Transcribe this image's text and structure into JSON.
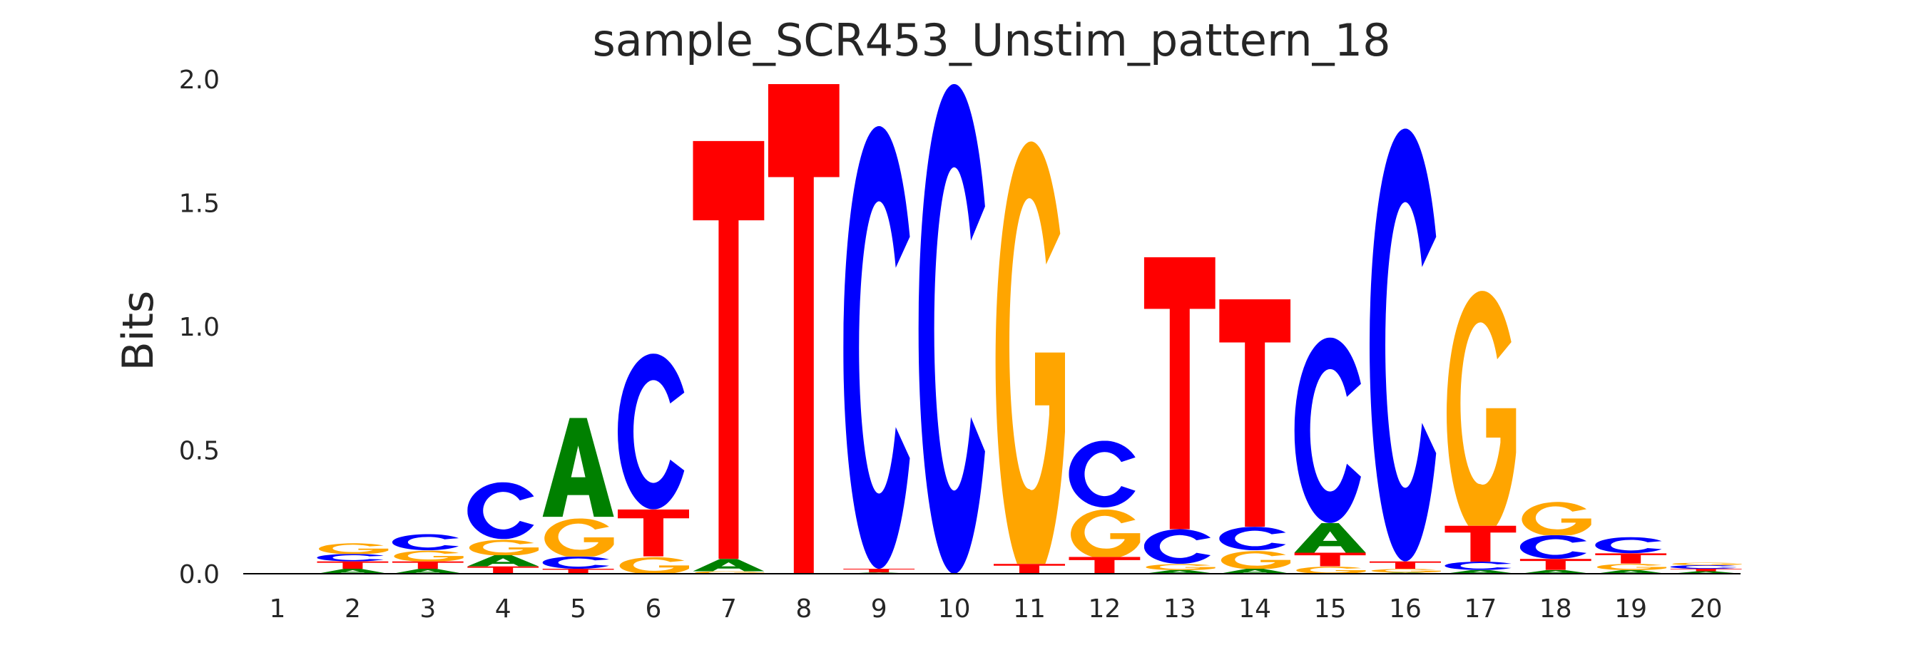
{
  "chart_data": {
    "type": "sequence-logo",
    "title": "sample_SCR453_Unstim_pattern_18",
    "xlabel": "",
    "ylabel": "Bits",
    "ylim": [
      0,
      2.0
    ],
    "yticks": [
      "0.0",
      "0.5",
      "1.0",
      "1.5",
      "2.0"
    ],
    "ytick_values": [
      0,
      0.5,
      1.0,
      1.5,
      2.0
    ],
    "xticks": [
      "1",
      "2",
      "3",
      "4",
      "5",
      "6",
      "7",
      "8",
      "9",
      "10",
      "11",
      "12",
      "13",
      "14",
      "15",
      "16",
      "17",
      "18",
      "19",
      "20"
    ],
    "grid": false,
    "colors": {
      "A": "#008000",
      "C": "#0000ff",
      "G": "#ffa500",
      "T": "#ff0000"
    },
    "positions": [
      {
        "pos": 1,
        "stack": []
      },
      {
        "pos": 2,
        "stack": [
          {
            "base": "A",
            "bits": 0.02
          },
          {
            "base": "T",
            "bits": 0.03
          },
          {
            "base": "C",
            "bits": 0.03
          },
          {
            "base": "G",
            "bits": 0.045
          }
        ]
      },
      {
        "pos": 3,
        "stack": [
          {
            "base": "A",
            "bits": 0.02
          },
          {
            "base": "T",
            "bits": 0.03
          },
          {
            "base": "G",
            "bits": 0.045
          },
          {
            "base": "C",
            "bits": 0.065
          }
        ]
      },
      {
        "pos": 4,
        "stack": [
          {
            "base": "T",
            "bits": 0.03
          },
          {
            "base": "A",
            "bits": 0.045
          },
          {
            "base": "G",
            "bits": 0.065
          },
          {
            "base": "C",
            "bits": 0.23
          }
        ]
      },
      {
        "pos": 5,
        "stack": [
          {
            "base": "T",
            "bits": 0.02
          },
          {
            "base": "C",
            "bits": 0.05
          },
          {
            "base": "G",
            "bits": 0.16
          },
          {
            "base": "A",
            "bits": 0.4
          }
        ]
      },
      {
        "pos": 6,
        "stack": [
          {
            "base": "G",
            "bits": 0.07
          },
          {
            "base": "T",
            "bits": 0.19
          },
          {
            "base": "C",
            "bits": 0.63
          }
        ]
      },
      {
        "pos": 7,
        "stack": [
          {
            "base": "G",
            "bits": 0.01
          },
          {
            "base": "A",
            "bits": 0.05
          },
          {
            "base": "T",
            "bits": 1.69
          }
        ]
      },
      {
        "pos": 8,
        "stack": [
          {
            "base": "T",
            "bits": 1.98
          }
        ]
      },
      {
        "pos": 9,
        "stack": [
          {
            "base": "A",
            "bits": 0.005
          },
          {
            "base": "T",
            "bits": 0.015
          },
          {
            "base": "C",
            "bits": 1.79
          }
        ]
      },
      {
        "pos": 10,
        "stack": [
          {
            "base": "C",
            "bits": 1.98
          }
        ]
      },
      {
        "pos": 11,
        "stack": [
          {
            "base": "T",
            "bits": 0.04
          },
          {
            "base": "G",
            "bits": 1.78
          }
        ]
      },
      {
        "pos": 12,
        "stack": [
          {
            "base": "T",
            "bits": 0.068
          },
          {
            "base": "G",
            "bits": 0.2
          },
          {
            "base": "C",
            "bits": 0.27
          }
        ]
      },
      {
        "pos": 13,
        "stack": [
          {
            "base": "A",
            "bits": 0.015
          },
          {
            "base": "G",
            "bits": 0.025
          },
          {
            "base": "C",
            "bits": 0.14
          },
          {
            "base": "T",
            "bits": 1.1
          }
        ]
      },
      {
        "pos": 14,
        "stack": [
          {
            "base": "A",
            "bits": 0.02
          },
          {
            "base": "G",
            "bits": 0.075
          },
          {
            "base": "C",
            "bits": 0.095
          },
          {
            "base": "T",
            "bits": 0.92
          }
        ]
      },
      {
        "pos": 15,
        "stack": [
          {
            "base": "G",
            "bits": 0.03
          },
          {
            "base": "T",
            "bits": 0.055
          },
          {
            "base": "A",
            "bits": 0.12
          },
          {
            "base": "C",
            "bits": 0.75
          }
        ]
      },
      {
        "pos": 16,
        "stack": [
          {
            "base": "A",
            "bits": 0.005
          },
          {
            "base": "G",
            "bits": 0.015
          },
          {
            "base": "T",
            "bits": 0.03
          },
          {
            "base": "C",
            "bits": 1.75
          }
        ]
      },
      {
        "pos": 17,
        "stack": [
          {
            "base": "A",
            "bits": 0.015
          },
          {
            "base": "C",
            "bits": 0.034
          },
          {
            "base": "T",
            "bits": 0.145
          },
          {
            "base": "G",
            "bits": 0.99
          }
        ]
      },
      {
        "pos": 18,
        "stack": [
          {
            "base": "A",
            "bits": 0.015
          },
          {
            "base": "T",
            "bits": 0.045
          },
          {
            "base": "C",
            "bits": 0.096
          },
          {
            "base": "G",
            "bits": 0.14
          }
        ]
      },
      {
        "pos": 19,
        "stack": [
          {
            "base": "A",
            "bits": 0.015
          },
          {
            "base": "G",
            "bits": 0.026
          },
          {
            "base": "T",
            "bits": 0.042
          },
          {
            "base": "C",
            "bits": 0.065
          }
        ]
      },
      {
        "pos": 20,
        "stack": [
          {
            "base": "A",
            "bits": 0.01
          },
          {
            "base": "T",
            "bits": 0.01
          },
          {
            "base": "C",
            "bits": 0.015
          },
          {
            "base": "G",
            "bits": 0.01
          }
        ]
      }
    ]
  }
}
